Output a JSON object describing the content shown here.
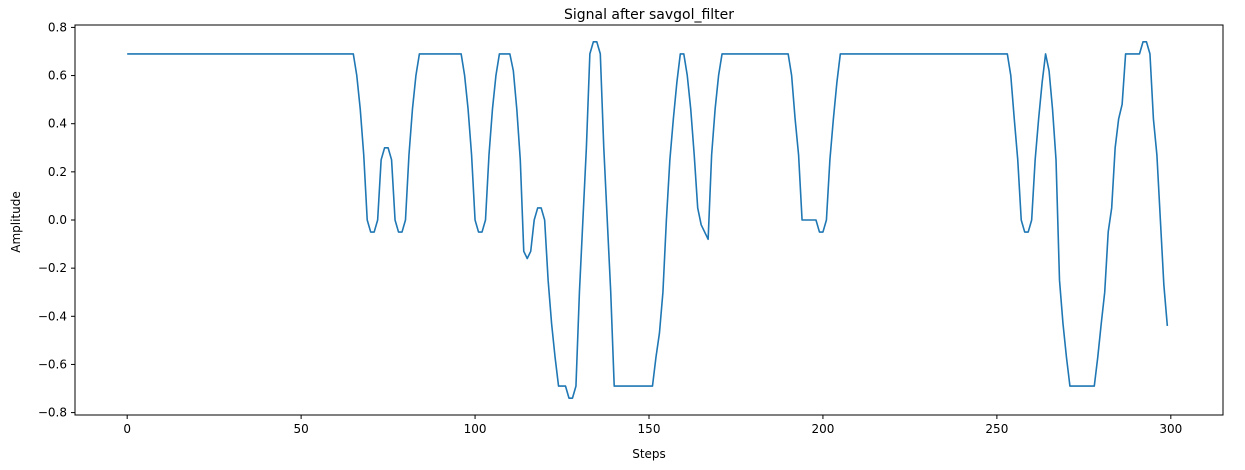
{
  "chart_data": {
    "type": "line",
    "title": "Signal after savgol_filter",
    "xlabel": "Steps",
    "ylabel": "Amplitude",
    "xlim": [
      -15,
      315
    ],
    "ylim": [
      -0.81,
      0.81
    ],
    "xticks": [
      0,
      50,
      100,
      150,
      200,
      250,
      300
    ],
    "yticks": [
      -0.8,
      -0.6,
      -0.4,
      -0.2,
      0.0,
      0.2,
      0.4,
      0.6,
      0.8
    ],
    "ytick_labels": [
      "−0.8",
      "−0.6",
      "−0.4",
      "−0.2",
      "0.0",
      "0.2",
      "0.4",
      "0.6",
      "0.8"
    ],
    "grid": false,
    "color": "#1f77b4",
    "series": [
      {
        "points": [
          [
            0,
            0.69
          ],
          [
            65,
            0.69
          ],
          [
            66,
            0.6
          ],
          [
            67,
            0.46
          ],
          [
            68,
            0.27
          ],
          [
            69,
            0.0
          ],
          [
            70,
            -0.05
          ],
          [
            71,
            -0.05
          ],
          [
            72,
            0.0
          ],
          [
            73,
            0.25
          ],
          [
            74,
            0.3
          ],
          [
            75,
            0.3
          ],
          [
            76,
            0.25
          ],
          [
            77,
            0.0
          ],
          [
            78,
            -0.05
          ],
          [
            79,
            -0.05
          ],
          [
            80,
            0.0
          ],
          [
            81,
            0.27
          ],
          [
            82,
            0.46
          ],
          [
            83,
            0.6
          ],
          [
            84,
            0.69
          ],
          [
            96,
            0.69
          ],
          [
            97,
            0.6
          ],
          [
            98,
            0.46
          ],
          [
            99,
            0.27
          ],
          [
            100,
            0.0
          ],
          [
            101,
            -0.05
          ],
          [
            102,
            -0.05
          ],
          [
            103,
            0.0
          ],
          [
            104,
            0.27
          ],
          [
            105,
            0.46
          ],
          [
            106,
            0.6
          ],
          [
            107,
            0.69
          ],
          [
            110,
            0.69
          ],
          [
            111,
            0.62
          ],
          [
            112,
            0.46
          ],
          [
            113,
            0.25
          ],
          [
            114,
            -0.13
          ],
          [
            115,
            -0.16
          ],
          [
            116,
            -0.13
          ],
          [
            117,
            0.0
          ],
          [
            118,
            0.05
          ],
          [
            119,
            0.05
          ],
          [
            120,
            0.0
          ],
          [
            121,
            -0.25
          ],
          [
            122,
            -0.43
          ],
          [
            123,
            -0.57
          ],
          [
            124,
            -0.69
          ],
          [
            126,
            -0.69
          ],
          [
            127,
            -0.74
          ],
          [
            128,
            -0.74
          ],
          [
            129,
            -0.69
          ],
          [
            130,
            -0.3
          ],
          [
            131,
            0.0
          ],
          [
            132,
            0.3
          ],
          [
            133,
            0.69
          ],
          [
            134,
            0.74
          ],
          [
            135,
            0.74
          ],
          [
            136,
            0.69
          ],
          [
            137,
            0.3
          ],
          [
            138,
            0.0
          ],
          [
            139,
            -0.3
          ],
          [
            140,
            -0.69
          ],
          [
            151,
            -0.69
          ],
          [
            152,
            -0.57
          ],
          [
            153,
            -0.47
          ],
          [
            154,
            -0.3
          ],
          [
            155,
            0.0
          ],
          [
            156,
            0.25
          ],
          [
            157,
            0.42
          ],
          [
            158,
            0.57
          ],
          [
            159,
            0.69
          ],
          [
            160,
            0.69
          ],
          [
            161,
            0.6
          ],
          [
            162,
            0.46
          ],
          [
            163,
            0.27
          ],
          [
            164,
            0.05
          ],
          [
            165,
            -0.02
          ],
          [
            166,
            -0.05
          ],
          [
            167,
            -0.08
          ],
          [
            168,
            0.27
          ],
          [
            169,
            0.46
          ],
          [
            170,
            0.6
          ],
          [
            171,
            0.69
          ],
          [
            190,
            0.69
          ],
          [
            191,
            0.6
          ],
          [
            192,
            0.42
          ],
          [
            193,
            0.27
          ],
          [
            194,
            0.0
          ],
          [
            198,
            0.0
          ],
          [
            199,
            -0.05
          ],
          [
            200,
            -0.05
          ],
          [
            201,
            0.0
          ],
          [
            202,
            0.25
          ],
          [
            203,
            0.42
          ],
          [
            204,
            0.57
          ],
          [
            205,
            0.69
          ],
          [
            253,
            0.69
          ],
          [
            254,
            0.6
          ],
          [
            255,
            0.42
          ],
          [
            256,
            0.25
          ],
          [
            257,
            0.0
          ],
          [
            258,
            -0.05
          ],
          [
            259,
            -0.05
          ],
          [
            260,
            0.0
          ],
          [
            261,
            0.25
          ],
          [
            262,
            0.42
          ],
          [
            263,
            0.57
          ],
          [
            264,
            0.69
          ],
          [
            265,
            0.62
          ],
          [
            266,
            0.46
          ],
          [
            267,
            0.25
          ],
          [
            268,
            -0.25
          ],
          [
            269,
            -0.43
          ],
          [
            270,
            -0.57
          ],
          [
            271,
            -0.69
          ],
          [
            278,
            -0.69
          ],
          [
            279,
            -0.57
          ],
          [
            280,
            -0.43
          ],
          [
            281,
            -0.3
          ],
          [
            282,
            -0.05
          ],
          [
            283,
            0.05
          ],
          [
            284,
            0.3
          ],
          [
            285,
            0.42
          ],
          [
            286,
            0.48
          ],
          [
            287,
            0.69
          ],
          [
            291,
            0.69
          ],
          [
            292,
            0.74
          ],
          [
            293,
            0.74
          ],
          [
            294,
            0.69
          ],
          [
            295,
            0.42
          ],
          [
            296,
            0.27
          ],
          [
            297,
            0.0
          ],
          [
            298,
            -0.27
          ],
          [
            299,
            -0.44
          ]
        ]
      }
    ]
  }
}
